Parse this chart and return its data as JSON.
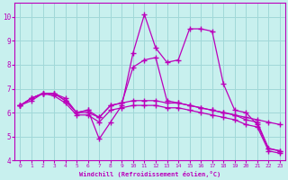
{
  "xlabel": "Windchill (Refroidissement éolien,°C)",
  "background_color": "#c8f0ee",
  "grid_color": "#a0d8d8",
  "line_color": "#bb00bb",
  "xlim": [
    -0.5,
    23.5
  ],
  "ylim": [
    4.0,
    10.6
  ],
  "yticks": [
    4,
    5,
    6,
    7,
    8,
    9,
    10
  ],
  "xticks": [
    0,
    1,
    2,
    3,
    4,
    5,
    6,
    7,
    8,
    9,
    10,
    11,
    12,
    13,
    14,
    15,
    16,
    17,
    18,
    19,
    20,
    21,
    22,
    23
  ],
  "series": [
    [
      6.3,
      6.6,
      6.8,
      6.8,
      6.6,
      6.0,
      6.1,
      4.9,
      5.6,
      6.3,
      8.5,
      10.1,
      8.7,
      8.1,
      8.2,
      9.5,
      9.5,
      9.4,
      7.2,
      6.1,
      6.0,
      5.5,
      4.5,
      4.4
    ],
    [
      6.3,
      6.6,
      6.8,
      6.8,
      6.5,
      6.0,
      6.0,
      5.8,
      6.3,
      6.4,
      7.9,
      8.2,
      8.3,
      6.5,
      6.4,
      6.3,
      6.2,
      6.1,
      6.0,
      5.9,
      5.8,
      5.7,
      5.6,
      5.5
    ],
    [
      6.3,
      6.5,
      6.8,
      6.8,
      6.5,
      6.0,
      6.1,
      5.8,
      6.3,
      6.4,
      6.5,
      6.5,
      6.5,
      6.4,
      6.4,
      6.3,
      6.2,
      6.1,
      6.0,
      5.9,
      5.7,
      5.6,
      4.5,
      4.4
    ],
    [
      6.3,
      6.6,
      6.8,
      6.7,
      6.4,
      5.9,
      5.9,
      5.6,
      6.1,
      6.2,
      6.3,
      6.3,
      6.3,
      6.2,
      6.2,
      6.1,
      6.0,
      5.9,
      5.8,
      5.7,
      5.5,
      5.4,
      4.4,
      4.3
    ]
  ],
  "marker": "+",
  "markersize": 4.0,
  "linewidth": 0.9
}
